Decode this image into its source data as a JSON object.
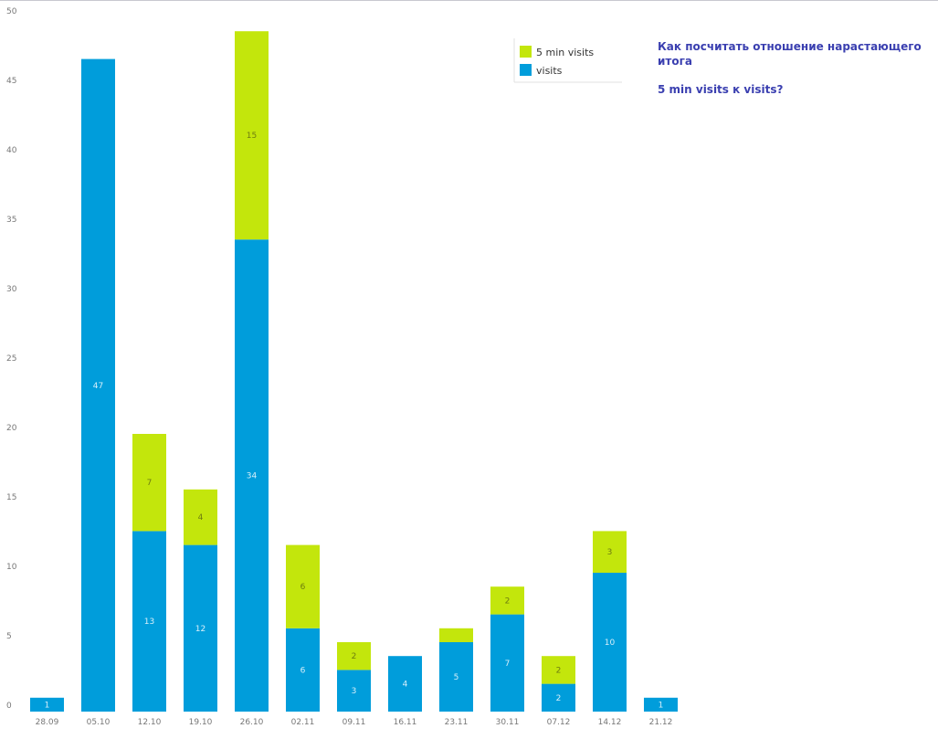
{
  "chart_data": {
    "type": "bar",
    "stacked": true,
    "categories": [
      "28.09",
      "05.10",
      "12.10",
      "19.10",
      "26.10",
      "02.11",
      "09.11",
      "16.11",
      "23.11",
      "30.11",
      "07.12",
      "14.12",
      "21.12"
    ],
    "series": [
      {
        "name": "visits",
        "color": "#009ddb",
        "values": [
          1,
          47,
          13,
          12,
          34,
          6,
          3,
          4,
          5,
          7,
          2,
          10,
          1
        ],
        "labels": [
          "1",
          "47",
          "13",
          "12",
          "34",
          "6",
          "3",
          "4",
          "5",
          "7",
          "2",
          "10",
          "1"
        ]
      },
      {
        "name": "5 min visits",
        "color": "#c3e60c",
        "values": [
          0,
          0,
          7,
          4,
          15,
          6,
          2,
          0,
          1,
          2,
          2,
          3,
          0
        ],
        "labels": [
          "",
          "",
          "7",
          "4",
          "15",
          "6",
          "2",
          "",
          "",
          "2",
          "2",
          "3",
          ""
        ]
      }
    ],
    "yticks": [
      "0",
      "5",
      "10",
      "15",
      "20",
      "25",
      "30",
      "35",
      "40",
      "45",
      "50"
    ],
    "ylim": [
      0,
      50
    ],
    "grid": false,
    "legend": [
      "5 min visits",
      "visits"
    ],
    "legend_position": "top-right"
  },
  "question": {
    "line1": "Как посчитать отношение нарастающего итога",
    "line2": "5 min visits к visits?"
  }
}
